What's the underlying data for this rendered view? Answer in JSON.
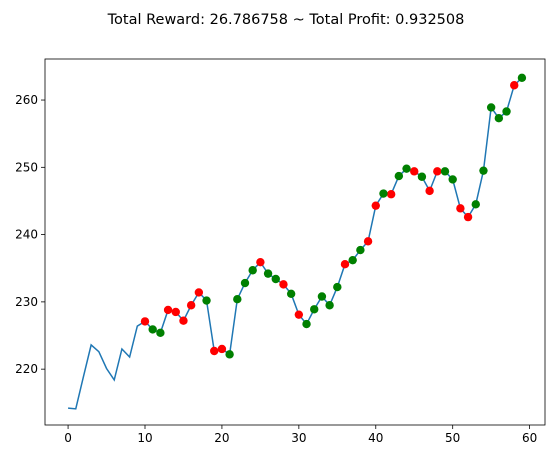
{
  "chart_data": {
    "type": "line",
    "title": "Total Reward: 26.786758 ~ Total Profit: 0.932508",
    "xlabel": "",
    "ylabel": "",
    "xlim": [
      -3,
      62
    ],
    "ylim": [
      211.7,
      266.1
    ],
    "x_ticks": [
      0,
      10,
      20,
      30,
      40,
      50,
      60
    ],
    "y_ticks": [
      220,
      230,
      240,
      250,
      260
    ],
    "grid": false,
    "colors": {
      "line": "#1f77b4",
      "sell": "#ff0000",
      "buy": "#008000"
    },
    "series": [
      {
        "x": [
          0,
          1,
          2,
          3,
          4,
          5,
          6,
          7,
          8,
          9,
          10,
          11,
          12,
          13,
          14,
          15,
          16,
          17,
          18,
          19,
          20,
          21,
          22,
          23,
          24,
          25,
          26,
          27,
          28,
          29,
          30,
          31,
          32,
          33,
          34,
          35,
          36,
          37,
          38,
          39,
          40,
          41,
          42,
          43,
          44,
          45,
          46,
          47,
          48,
          49,
          50,
          51,
          52,
          53,
          54,
          55,
          56,
          57,
          58,
          59
        ],
        "values": [
          214.2,
          214.1,
          218.9,
          223.6,
          222.6,
          220.1,
          218.4,
          223.0,
          221.8,
          226.4,
          227.1,
          225.9,
          225.4,
          228.8,
          228.5,
          227.2,
          229.5,
          231.4,
          230.2,
          222.7,
          223.0,
          222.2,
          230.4,
          232.8,
          234.7,
          235.9,
          234.2,
          233.4,
          232.6,
          231.2,
          228.1,
          226.7,
          228.9,
          230.8,
          229.5,
          232.2,
          235.6,
          236.2,
          237.7,
          239.0,
          244.3,
          246.1,
          246.0,
          248.7,
          249.8,
          249.4,
          248.6,
          246.5,
          249.4,
          249.4,
          248.2,
          243.9,
          242.6,
          244.5,
          249.5,
          258.9,
          257.3,
          258.3,
          262.2,
          263.3
        ]
      }
    ],
    "markers": {
      "sell_x": [
        10,
        13,
        14,
        15,
        16,
        17,
        19,
        20,
        25,
        28,
        30,
        36,
        39,
        40,
        42,
        45,
        47,
        48,
        51,
        52,
        58
      ],
      "buy_x": [
        11,
        12,
        18,
        21,
        22,
        23,
        24,
        26,
        27,
        29,
        31,
        32,
        33,
        34,
        35,
        37,
        38,
        41,
        43,
        44,
        46,
        49,
        50,
        53,
        54,
        55,
        56,
        57,
        59
      ]
    }
  }
}
